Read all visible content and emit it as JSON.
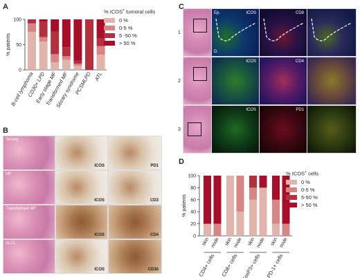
{
  "panels": {
    "a": "A",
    "b": "B",
    "c": "C",
    "d": "D"
  },
  "colors": {
    "c0": "#e0b4aa",
    "c05": "#d88586",
    "c550": "#b4303d",
    "c50": "#a80d29"
  },
  "panel_a": {
    "legend_title_pre": "% ICOS",
    "legend_title_sup": "+",
    "legend_title_post": " tumoral cells",
    "legend_items": [
      "0 %",
      "0-5 %",
      "5 -50 %",
      "> 50 %"
    ]
  },
  "panel_b": {
    "row_labels": [
      "Sézary",
      "MF",
      "Transformed MF",
      "ALCL"
    ],
    "stain_labels": [
      [
        "ICOS",
        "PD1"
      ],
      [
        "ICOS",
        "CD3"
      ],
      [
        "ICOS",
        "CD4"
      ],
      [
        "ICOS",
        "CD30"
      ]
    ]
  },
  "panel_c": {
    "row_numbers": [
      "1",
      "2",
      "3"
    ],
    "header_labels": [
      "Ep.",
      "ICOS",
      "CD8"
    ],
    "dermis_label": "D.",
    "row2_labels": [
      "ICOS",
      "CD4"
    ],
    "row3_labels": [
      "ICOS",
      "PD1"
    ]
  },
  "panel_d": {
    "legend_title_pre": "% ICOS",
    "legend_title_sup": "+",
    "legend_title_post": " cells",
    "legend_items": [
      "0 %",
      "0-5 %",
      "5-50 %",
      "> 50 %"
    ]
  },
  "chart_data": [
    {
      "type": "bar",
      "stacked": true,
      "categories": [
        "B-cell lymphoma",
        "CD30+ LPD",
        "Early stage MF",
        "Transformed MF",
        "Sézary syndrome",
        "PCSMLPD",
        "ATL"
      ],
      "series": [
        {
          "name": "0 %",
          "values": [
            75,
            56,
            15,
            20,
            8,
            0,
            30
          ]
        },
        {
          "name": "0-5 %",
          "values": [
            17,
            9,
            16,
            7,
            4,
            0,
            17
          ]
        },
        {
          "name": "5 -50 %",
          "values": [
            8,
            30,
            45,
            18,
            6,
            100,
            15
          ]
        },
        {
          "name": "> 50 %",
          "values": [
            0,
            5,
            24,
            55,
            82,
            0,
            38
          ]
        }
      ],
      "ylabel": "% patients",
      "yticks": [
        0,
        50,
        100
      ],
      "ylim": [
        0,
        100
      ]
    },
    {
      "type": "bar",
      "stacked": true,
      "categories": [
        "skin",
        "node",
        "skin",
        "node",
        "skin",
        "node",
        "skin",
        "node"
      ],
      "groups": [
        "CD4+ cells",
        "CD8+ cells",
        "FoxP3+ cells",
        "PD-1+ cells"
      ],
      "series": [
        {
          "name": "0 %",
          "values": [
            20,
            0,
            100,
            40,
            60,
            80,
            20,
            0
          ]
        },
        {
          "name": "0-5 %",
          "values": [
            0,
            20,
            0,
            60,
            20,
            0,
            40,
            20
          ]
        },
        {
          "name": "5-50 %",
          "values": [
            0,
            0,
            0,
            0,
            20,
            0,
            0,
            0
          ]
        },
        {
          "name": "> 50 %",
          "values": [
            80,
            80,
            0,
            0,
            0,
            20,
            40,
            80
          ]
        }
      ],
      "ylabel": "% patients",
      "yticks": [
        0,
        20,
        40,
        60,
        80,
        100
      ],
      "ylim": [
        0,
        100
      ]
    }
  ]
}
